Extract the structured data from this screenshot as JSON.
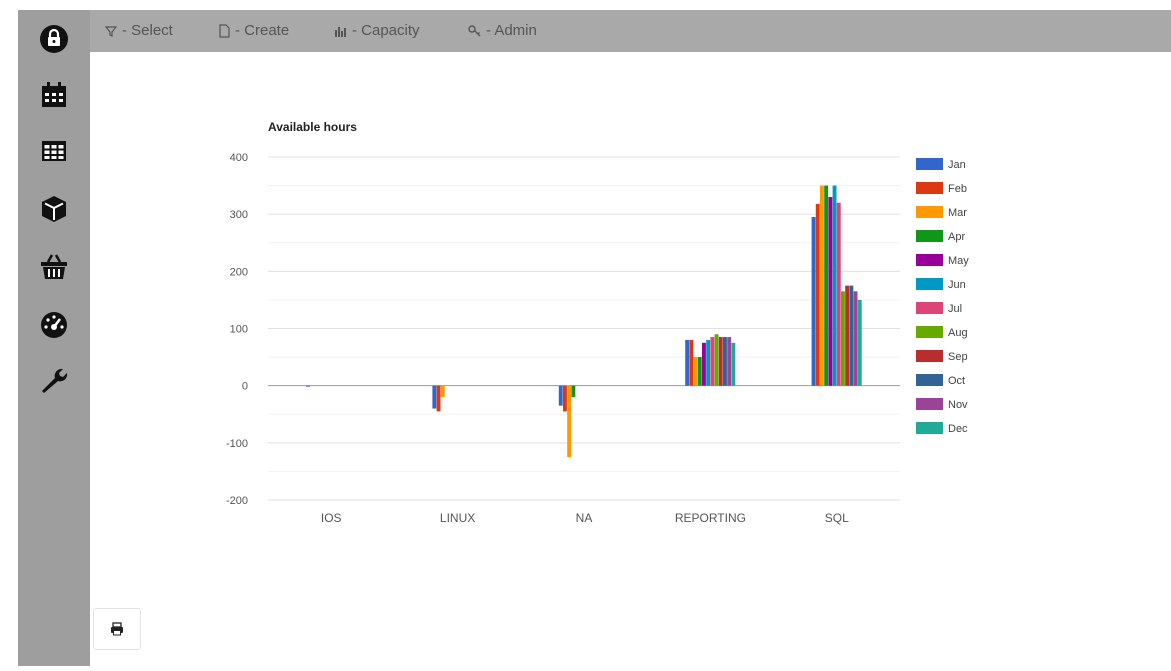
{
  "nav": {
    "select_label": "- Select",
    "create_label": "- Create",
    "capacity_label": "- Capacity",
    "admin_label": "- Admin"
  },
  "sidebar": {
    "icons": [
      "lock-icon",
      "calendar-icon",
      "table-icon",
      "cube-icon",
      "basket-icon",
      "dashboard-icon",
      "wrench-icon"
    ]
  },
  "colors": {
    "sidebar_bg": "#9e9e9e",
    "topbar_bg": "#a9a9a9",
    "series": [
      "#3366cc",
      "#dc3912",
      "#ff9900",
      "#109618",
      "#990099",
      "#0099c6",
      "#dd4477",
      "#66aa00",
      "#b82e2e",
      "#316395",
      "#994499",
      "#22aa99"
    ]
  },
  "chart_data": {
    "type": "bar",
    "title": "Available hours",
    "xlabel": "",
    "ylabel": "",
    "ylim": [
      -200,
      400
    ],
    "yticks": [
      400,
      300,
      200,
      100,
      0,
      -100,
      -200
    ],
    "grid": true,
    "legend_position": "right",
    "categories": [
      "IOS",
      "LINUX",
      "NA",
      "REPORTING",
      "SQL"
    ],
    "series": [
      {
        "name": "Jan",
        "values": [
          -1,
          -40,
          -35,
          80,
          295
        ]
      },
      {
        "name": "Feb",
        "values": [
          0,
          -45,
          -45,
          80,
          318
        ]
      },
      {
        "name": "Mar",
        "values": [
          0,
          -20,
          -125,
          50,
          350
        ]
      },
      {
        "name": "Apr",
        "values": [
          0,
          0,
          -20,
          50,
          350
        ]
      },
      {
        "name": "May",
        "values": [
          0,
          0,
          0,
          75,
          330
        ]
      },
      {
        "name": "Jun",
        "values": [
          0,
          0,
          0,
          80,
          350
        ]
      },
      {
        "name": "Jul",
        "values": [
          0,
          0,
          0,
          85,
          320
        ]
      },
      {
        "name": "Aug",
        "values": [
          0,
          0,
          0,
          90,
          165
        ]
      },
      {
        "name": "Sep",
        "values": [
          0,
          0,
          0,
          85,
          175
        ]
      },
      {
        "name": "Oct",
        "values": [
          0,
          0,
          0,
          85,
          175
        ]
      },
      {
        "name": "Nov",
        "values": [
          0,
          0,
          0,
          85,
          165
        ]
      },
      {
        "name": "Dec",
        "values": [
          0,
          0,
          0,
          75,
          150
        ]
      }
    ]
  }
}
